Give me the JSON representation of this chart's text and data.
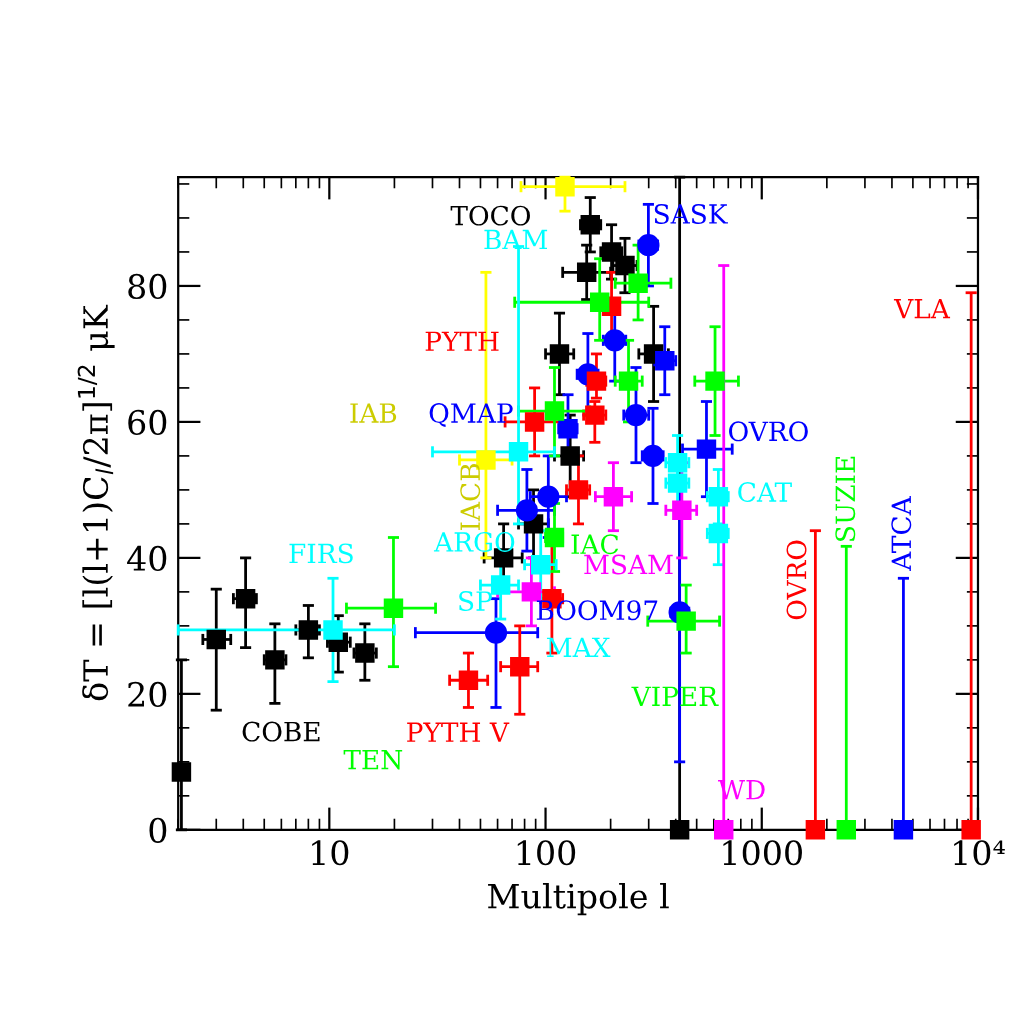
{
  "chart_data": {
    "type": "scatter",
    "xlabel": "Multipole l",
    "ylabel": "δT = [l(l+1)C$_{l}$/2π]$^{1/2}$ μK",
    "log": "x",
    "xlim": [
      2,
      10000
    ],
    "xticks": [
      10,
      100,
      1000,
      {
        "value": 10000,
        "label": "10⁴"
      }
    ],
    "ylim": [
      0,
      96
    ],
    "yticks": [
      0,
      20,
      40,
      60,
      80
    ],
    "grid": false,
    "legend": false,
    "series": [
      {
        "color": "#000000",
        "marker": "square",
        "x": [
          2.07,
          3.0,
          4.1,
          5.6,
          8.0,
          11,
          14.6,
          64,
          88,
          116,
          161,
          202,
          155,
          233,
          316,
          130,
          417
        ],
        "values": [
          8.5,
          28,
          34,
          25,
          29.4,
          27.6,
          26,
          40,
          45,
          70,
          89,
          85,
          82,
          83,
          70,
          55,
          0
        ],
        "errors": [
          [
            0,
            25
          ],
          [
            17.6,
            35.4
          ],
          [
            26.8,
            40
          ],
          [
            18.6,
            30.3
          ],
          [
            25.3,
            33
          ],
          [
            23.2,
            31.5
          ],
          [
            22,
            30.3
          ],
          [
            35,
            45
          ],
          [
            40,
            50
          ],
          [
            64,
            76
          ],
          [
            85,
            93
          ],
          [
            81,
            89
          ],
          [
            78,
            86
          ],
          [
            79,
            87
          ],
          [
            63,
            77
          ],
          [
            49,
            61
          ],
          [
            0,
            96
          ]
        ],
        "xerrors": [
          null,
          [
            2.6,
            3.5
          ],
          [
            3.6,
            4.6
          ],
          [
            5.0,
            6.3
          ],
          [
            7.0,
            9.0
          ],
          [
            9.8,
            12.5
          ],
          [
            13,
            16.5
          ],
          [
            52,
            78
          ],
          [
            75,
            103
          ],
          [
            100,
            135
          ],
          [
            145,
            180
          ],
          [
            180,
            225
          ],
          [
            120,
            200
          ],
          [
            205,
            265
          ],
          [
            270,
            370
          ],
          [
            110,
            150
          ],
          null
        ]
      },
      {
        "color": "#0000ff",
        "marker": "circle",
        "x": [
          59,
          103,
          82,
          209,
          157,
          262,
          314,
          299,
          417
        ],
        "values": [
          29,
          49,
          47,
          72,
          67,
          61,
          55,
          86,
          32
        ],
        "errors": [
          [
            18,
            34
          ],
          [
            43,
            55
          ],
          [
            41,
            53
          ],
          [
            66,
            78
          ],
          [
            61,
            73
          ],
          [
            54,
            68
          ],
          [
            48,
            62
          ],
          [
            80,
            92
          ],
          [
            10,
            50
          ]
        ],
        "xerrors": [
          [
            25,
            92
          ],
          [
            85,
            125
          ],
          [
            60,
            110
          ],
          [
            185,
            235
          ],
          [
            140,
            175
          ],
          [
            230,
            300
          ],
          [
            280,
            350
          ],
          [
            270,
            330
          ],
          [
            380,
            460
          ]
        ]
      },
      {
        "color": "#0000ff",
        "marker": "square",
        "x": [
          555,
          356,
          127,
          4520
        ],
        "values": [
          56,
          69,
          59,
          0
        ],
        "errors": [
          [
            49,
            63
          ],
          [
            64,
            74
          ],
          [
            54,
            64
          ],
          [
            0,
            37
          ]
        ],
        "xerrors": [
          [
            430,
            730
          ],
          [
            320,
            400
          ],
          [
            115,
            140
          ],
          null
        ]
      },
      {
        "color": "#ff0000",
        "marker": "square",
        "x": [
          89,
          169,
          202,
          172,
          142,
          44,
          76,
          107,
          1770,
          9300
        ],
        "values": [
          60,
          61,
          77,
          66,
          50,
          22,
          24,
          34,
          0,
          0
        ],
        "errors": [
          [
            55,
            65
          ],
          [
            57,
            63
          ],
          [
            72,
            82
          ],
          [
            63.5,
            70
          ],
          [
            45,
            55
          ],
          [
            18,
            26
          ],
          [
            17,
            30
          ],
          [
            26,
            42
          ],
          [
            0,
            44
          ],
          [
            0,
            79
          ]
        ],
        "xerrors": [
          [
            65,
            120
          ],
          [
            150,
            190
          ],
          [
            185,
            220
          ],
          [
            155,
            190
          ],
          [
            125,
            160
          ],
          [
            36,
            54
          ],
          [
            62,
            92
          ],
          [
            95,
            120
          ],
          null,
          null
        ]
      },
      {
        "color": "#00ff00",
        "marker": "square",
        "x": [
          19.8,
          110,
          110,
          178,
          268,
          242,
          608,
          447,
          2460
        ],
        "values": [
          32.6,
          61.6,
          43,
          77.6,
          80.4,
          66,
          66,
          30.7,
          0
        ],
        "errors": [
          [
            24,
            43
          ],
          [
            55,
            68
          ],
          [
            38,
            48
          ],
          [
            72,
            84
          ],
          [
            75,
            86
          ],
          [
            60,
            72
          ],
          [
            58,
            74
          ],
          [
            26,
            36
          ],
          [
            0,
            41.7
          ]
        ],
        "xerrors": [
          [
            12,
            31
          ],
          [
            75,
            160
          ],
          [
            100,
            120
          ],
          [
            72,
            300
          ],
          [
            210,
            380
          ],
          [
            210,
            280
          ],
          [
            490,
            780
          ],
          [
            297,
            638
          ],
          null
        ]
      },
      {
        "color": "#00ffff",
        "marker": "square",
        "x": [
          10.4,
          75,
          62,
          95,
          630,
          630,
          408,
          408
        ],
        "values": [
          29.4,
          55.6,
          36,
          39,
          49,
          43.6,
          54,
          51
        ],
        "errors": [
          [
            21.8,
            37
          ],
          [
            45,
            85.8
          ],
          [
            31,
            41
          ],
          [
            34,
            44
          ],
          [
            45,
            53
          ],
          [
            39,
            48
          ],
          [
            50,
            58
          ],
          [
            47,
            55
          ]
        ],
        "xerrors": [
          [
            2,
            20
          ],
          [
            30,
            110
          ],
          [
            50,
            75
          ],
          [
            80,
            112
          ],
          [
            560,
            700
          ],
          [
            560,
            700
          ],
          [
            360,
            460
          ],
          [
            360,
            460
          ]
        ]
      },
      {
        "color": "#ffff00",
        "marker": "square",
        "x": [
          53,
          123
        ],
        "values": [
          54.4,
          94.6
        ],
        "errors": [
          [
            40,
            82
          ],
          [
            91,
            96
          ]
        ],
        "xerrors": [
          [
            40,
            70
          ],
          [
            77,
            233
          ]
        ]
      },
      {
        "color": "#ff00ff",
        "marker": "square",
        "x": [
          86,
          206,
          427,
          667
        ],
        "values": [
          35,
          49,
          47,
          0
        ],
        "errors": [
          [
            30,
            40
          ],
          [
            44,
            54
          ],
          [
            40,
            54
          ],
          [
            0,
            83
          ]
        ],
        "xerrors": [
          [
            60,
            110
          ],
          [
            170,
            250
          ],
          [
            360,
            500
          ],
          null
        ]
      }
    ],
    "annotations": [
      "COBE",
      "TEN",
      "FIRS",
      "PYTH V",
      "TOCO",
      "BAM",
      "PYTH",
      "IAB",
      "QMAP",
      "IACB",
      "ARGO",
      "SP",
      "MAX",
      "MSAM",
      "IAC",
      "BOOM97",
      "VIPER",
      "WD",
      "OVRO",
      "CAT",
      "SASK",
      "VLA",
      "OVRO",
      "SUZIE",
      "ATCA"
    ]
  }
}
